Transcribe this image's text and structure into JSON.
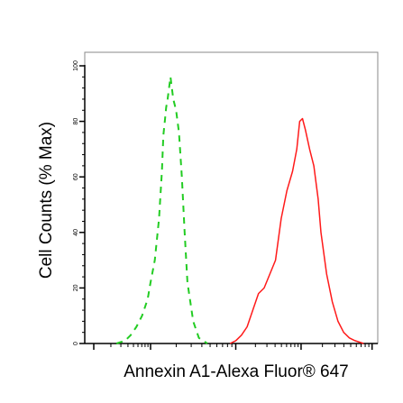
{
  "chart_data": {
    "type": "line",
    "xlabel": "Annexin A1-Alexa Fluor® 647",
    "ylabel": "Cell Counts (% Max)",
    "ylim": [
      0,
      100
    ],
    "yticks": [
      "0",
      "20",
      "40",
      "60",
      "80",
      "100"
    ],
    "x_scale": "log",
    "xlim": [
      0,
      1
    ],
    "grid": false,
    "legend": "none",
    "series": [
      {
        "color": "#22cc22",
        "style": "dashed",
        "x": [
          0.08,
          0.11,
          0.13,
          0.15,
          0.17,
          0.19,
          0.2,
          0.215,
          0.23,
          0.24,
          0.245,
          0.25,
          0.255,
          0.26,
          0.27,
          0.28,
          0.29,
          0.3,
          0.31,
          0.32,
          0.33,
          0.35,
          0.37,
          0.4
        ],
        "y": [
          0,
          1,
          3,
          6,
          10,
          16,
          22,
          30,
          45,
          62,
          75,
          80,
          85,
          88,
          96,
          88,
          84,
          76,
          60,
          40,
          22,
          8,
          2,
          0
        ]
      },
      {
        "color": "#ff1a1a",
        "style": "solid",
        "x": [
          0.48,
          0.5,
          0.52,
          0.54,
          0.56,
          0.58,
          0.6,
          0.62,
          0.64,
          0.66,
          0.68,
          0.7,
          0.715,
          0.725,
          0.735,
          0.745,
          0.76,
          0.775,
          0.79,
          0.8,
          0.82,
          0.84,
          0.86,
          0.88,
          0.9,
          0.92,
          0.95
        ],
        "y": [
          0,
          1,
          3,
          6,
          12,
          18,
          20,
          25,
          30,
          45,
          55,
          62,
          70,
          80,
          81,
          77,
          70,
          64,
          52,
          40,
          25,
          15,
          8,
          4,
          2,
          1,
          0
        ]
      }
    ]
  }
}
